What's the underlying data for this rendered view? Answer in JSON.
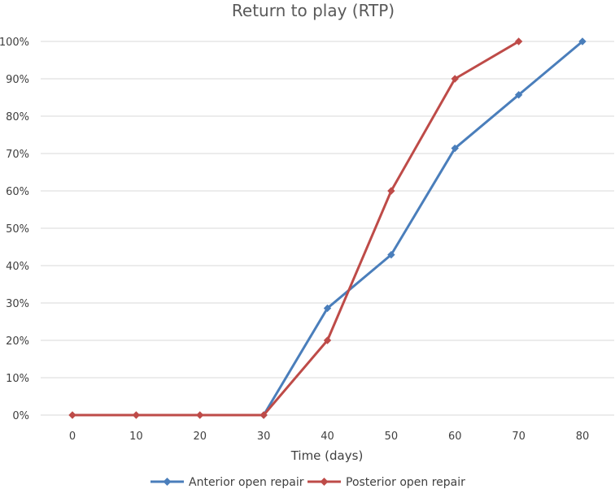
{
  "chart_data": {
    "type": "line",
    "title": "Return to play (RTP)",
    "xlabel": "Time (days)",
    "ylabel": "",
    "x": [
      0,
      10,
      20,
      30,
      40,
      50,
      60,
      70,
      80
    ],
    "x_tick_labels": [
      "0",
      "10",
      "20",
      "30",
      "40",
      "50",
      "60",
      "70",
      "80"
    ],
    "y_tick_labels": [
      "0%",
      "10%",
      "20%",
      "30%",
      "40%",
      "50%",
      "60%",
      "70%",
      "80%",
      "90%",
      "100%"
    ],
    "ylim": [
      0,
      100
    ],
    "grid": true,
    "legend_position": "bottom",
    "series": [
      {
        "name": "Anterior open repair",
        "color": "#4a7ebb",
        "x": [
          30,
          40,
          50,
          60,
          70,
          80
        ],
        "values": [
          0,
          28.6,
          42.9,
          71.4,
          85.7,
          100
        ]
      },
      {
        "name": "Posterior open repair",
        "color": "#be4b48",
        "x": [
          0,
          10,
          20,
          30,
          40,
          50,
          60,
          70
        ],
        "values": [
          0,
          0,
          0,
          0,
          20,
          60,
          90,
          100
        ]
      }
    ]
  }
}
